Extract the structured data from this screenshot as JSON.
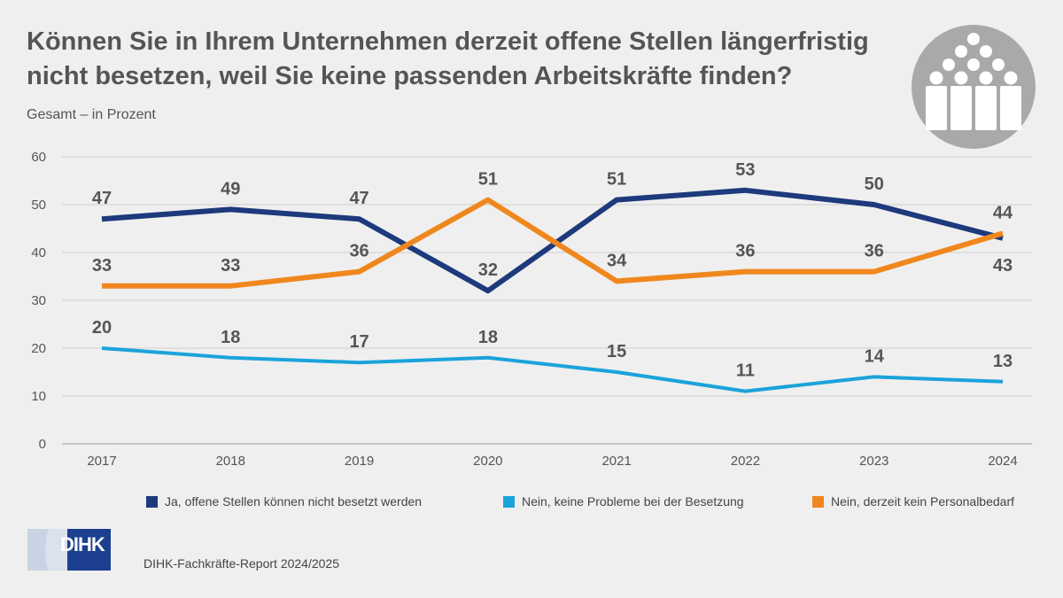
{
  "title": "Können Sie in Ihrem Unternehmen derzeit offene Stellen längerfristig nicht besetzen, weil Sie keine passenden Arbeitskräfte finden?",
  "subtitle": "Gesamt – in Prozent",
  "logo_text": "DIHK",
  "source": "DIHK-Fachkräfte-Report 2024/2025",
  "icon": "people-group-icon",
  "chart_data": {
    "type": "line",
    "title": "Können Sie in Ihrem Unternehmen derzeit offene Stellen längerfristig nicht besetzen, weil Sie keine passenden Arbeitskräfte finden?",
    "ylabel": "Gesamt – in Prozent",
    "xlabel": "",
    "ylim": [
      0,
      60
    ],
    "yticks": [
      "0",
      "10",
      "20",
      "30",
      "40",
      "50",
      "60"
    ],
    "grid": true,
    "legend_position": "bottom",
    "categories": [
      "2017",
      "2018",
      "2019",
      "2020",
      "2021",
      "2022",
      "2023",
      "2024"
    ],
    "series": [
      {
        "name": "Ja, offene Stellen können nicht besetzt werden",
        "color": "#1c3a7c",
        "values": [
          47,
          49,
          47,
          32,
          51,
          53,
          50,
          43
        ]
      },
      {
        "name": "Nein, keine Probleme bei der Besetzung",
        "color": "#1aa3da",
        "values": [
          20,
          18,
          17,
          18,
          15,
          11,
          14,
          13
        ]
      },
      {
        "name": "Nein, derzeit kein Personalbedarf",
        "color": "#f0871e",
        "values": [
          33,
          33,
          36,
          51,
          34,
          36,
          36,
          44
        ]
      }
    ]
  }
}
